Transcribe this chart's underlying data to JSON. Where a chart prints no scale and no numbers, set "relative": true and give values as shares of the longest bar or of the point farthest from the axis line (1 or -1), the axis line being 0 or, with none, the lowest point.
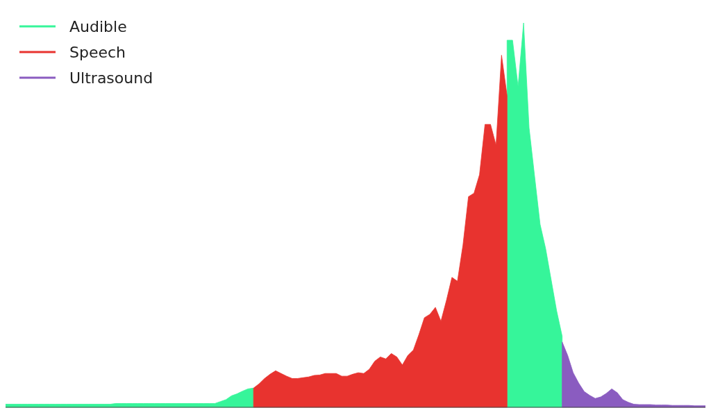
{
  "chart_data": {
    "type": "area",
    "relative": true,
    "legend": "top left",
    "categories": [
      null,
      null,
      null,
      null,
      null,
      null,
      null,
      null,
      null,
      null,
      null,
      null,
      null,
      null,
      null,
      null,
      null,
      null,
      null,
      null,
      null,
      null,
      null,
      null,
      null,
      null,
      null,
      null,
      null,
      null,
      null,
      null,
      null,
      null,
      null,
      null,
      null,
      null,
      null,
      null,
      null,
      null,
      null,
      null,
      null,
      null,
      null,
      null,
      null,
      null,
      null,
      null,
      null,
      null,
      null,
      null,
      null,
      null,
      null,
      null,
      null,
      null,
      null,
      null,
      null,
      null,
      null,
      null,
      null,
      null,
      null,
      null,
      null,
      null,
      null,
      null,
      null,
      null,
      null,
      null,
      null,
      null,
      null,
      null,
      null,
      null,
      null,
      null,
      null,
      null,
      null,
      null,
      null,
      null,
      null,
      null,
      null,
      null,
      null,
      null,
      null,
      null,
      null,
      null,
      null,
      null,
      null,
      null,
      null,
      null,
      null,
      null,
      null,
      null,
      null,
      null,
      null,
      null,
      null,
      null,
      null,
      null,
      null,
      null,
      null,
      null,
      null,
      null
    ],
    "series": [
      {
        "name": "Audible",
        "color": "#36f59a",
        "values": [
          0.008,
          0.008,
          0.008,
          0.008,
          0.008,
          0.008,
          0.008,
          0.008,
          0.008,
          0.008,
          0.008,
          0.008,
          0.008,
          0.008,
          0.008,
          0.008,
          0.008,
          0.008,
          0.008,
          0.008,
          0.01,
          0.01,
          0.01,
          0.01,
          0.01,
          0.01,
          0.01,
          0.01,
          0.01,
          0.01,
          0.01,
          0.01,
          0.01,
          0.01,
          0.01,
          0.01,
          0.01,
          0.01,
          0.01,
          0.015,
          0.02,
          0.03,
          0.035,
          0.042,
          0.048,
          0.05,
          null,
          null,
          null,
          null,
          null,
          null,
          null,
          null,
          null,
          null,
          null,
          null,
          null,
          null,
          null,
          null,
          null,
          null,
          null,
          null,
          null,
          null,
          null,
          null,
          null,
          null,
          null,
          null,
          null,
          null,
          null,
          null,
          null,
          null,
          null,
          null,
          null,
          null,
          null,
          null,
          null,
          null,
          null,
          null,
          null,
          0.955,
          0.955,
          0.835,
          1,
          0.727,
          0.601,
          0.476,
          0.413,
          0.332,
          0.251,
          0.185,
          null,
          null,
          null,
          null,
          null,
          null,
          null,
          null,
          null,
          null,
          null,
          null,
          null,
          null,
          null,
          null,
          null,
          null,
          null,
          null,
          null,
          null,
          null,
          null,
          null,
          null
        ]
      },
      {
        "name": "Speech",
        "color": "#e8332f",
        "values": [
          null,
          null,
          null,
          null,
          null,
          null,
          null,
          null,
          null,
          null,
          null,
          null,
          null,
          null,
          null,
          null,
          null,
          null,
          null,
          null,
          null,
          null,
          null,
          null,
          null,
          null,
          null,
          null,
          null,
          null,
          null,
          null,
          null,
          null,
          null,
          null,
          null,
          null,
          null,
          null,
          null,
          null,
          null,
          null,
          null,
          0.05,
          0.061,
          0.075,
          0.086,
          0.095,
          0.088,
          0.081,
          0.075,
          0.075,
          0.077,
          0.079,
          0.083,
          0.084,
          0.088,
          0.088,
          0.088,
          0.081,
          0.081,
          0.086,
          0.09,
          0.088,
          0.099,
          0.12,
          0.131,
          0.126,
          0.14,
          0.131,
          0.11,
          0.135,
          0.149,
          0.189,
          0.233,
          0.242,
          0.26,
          0.224,
          0.278,
          0.338,
          0.328,
          0.422,
          0.548,
          0.557,
          0.605,
          0.736,
          0.736,
          0.682,
          0.916,
          0.811,
          null,
          null,
          null,
          null,
          null,
          null,
          null,
          null,
          null,
          null,
          null,
          null,
          null,
          null,
          null,
          null,
          null,
          null,
          null,
          null,
          null,
          null,
          null,
          null,
          null,
          null,
          null,
          null,
          null,
          null,
          null,
          null,
          null,
          null,
          null,
          null
        ]
      },
      {
        "name": "Ultrasound",
        "color": "#8a5cc0",
        "values": [
          null,
          null,
          null,
          null,
          null,
          null,
          null,
          null,
          null,
          null,
          null,
          null,
          null,
          null,
          null,
          null,
          null,
          null,
          null,
          null,
          null,
          null,
          null,
          null,
          null,
          null,
          null,
          null,
          null,
          null,
          null,
          null,
          null,
          null,
          null,
          null,
          null,
          null,
          null,
          null,
          null,
          null,
          null,
          null,
          null,
          null,
          null,
          null,
          null,
          null,
          null,
          null,
          null,
          null,
          null,
          null,
          null,
          null,
          null,
          null,
          null,
          null,
          null,
          null,
          null,
          null,
          null,
          null,
          null,
          null,
          null,
          null,
          null,
          null,
          null,
          null,
          null,
          null,
          null,
          null,
          null,
          null,
          null,
          null,
          null,
          null,
          null,
          null,
          null,
          null,
          null,
          null,
          null,
          null,
          null,
          null,
          null,
          null,
          null,
          null,
          null,
          0.17,
          0.135,
          0.09,
          0.063,
          0.041,
          0.031,
          0.023,
          0.027,
          0.036,
          0.048,
          0.038,
          0.02,
          0.013,
          0.008,
          0.007,
          0.007,
          0.007,
          0.006,
          0.006,
          0.006,
          0.005,
          0.005,
          0.005,
          0.005,
          0.004,
          0.004,
          0.004
        ]
      }
    ]
  }
}
